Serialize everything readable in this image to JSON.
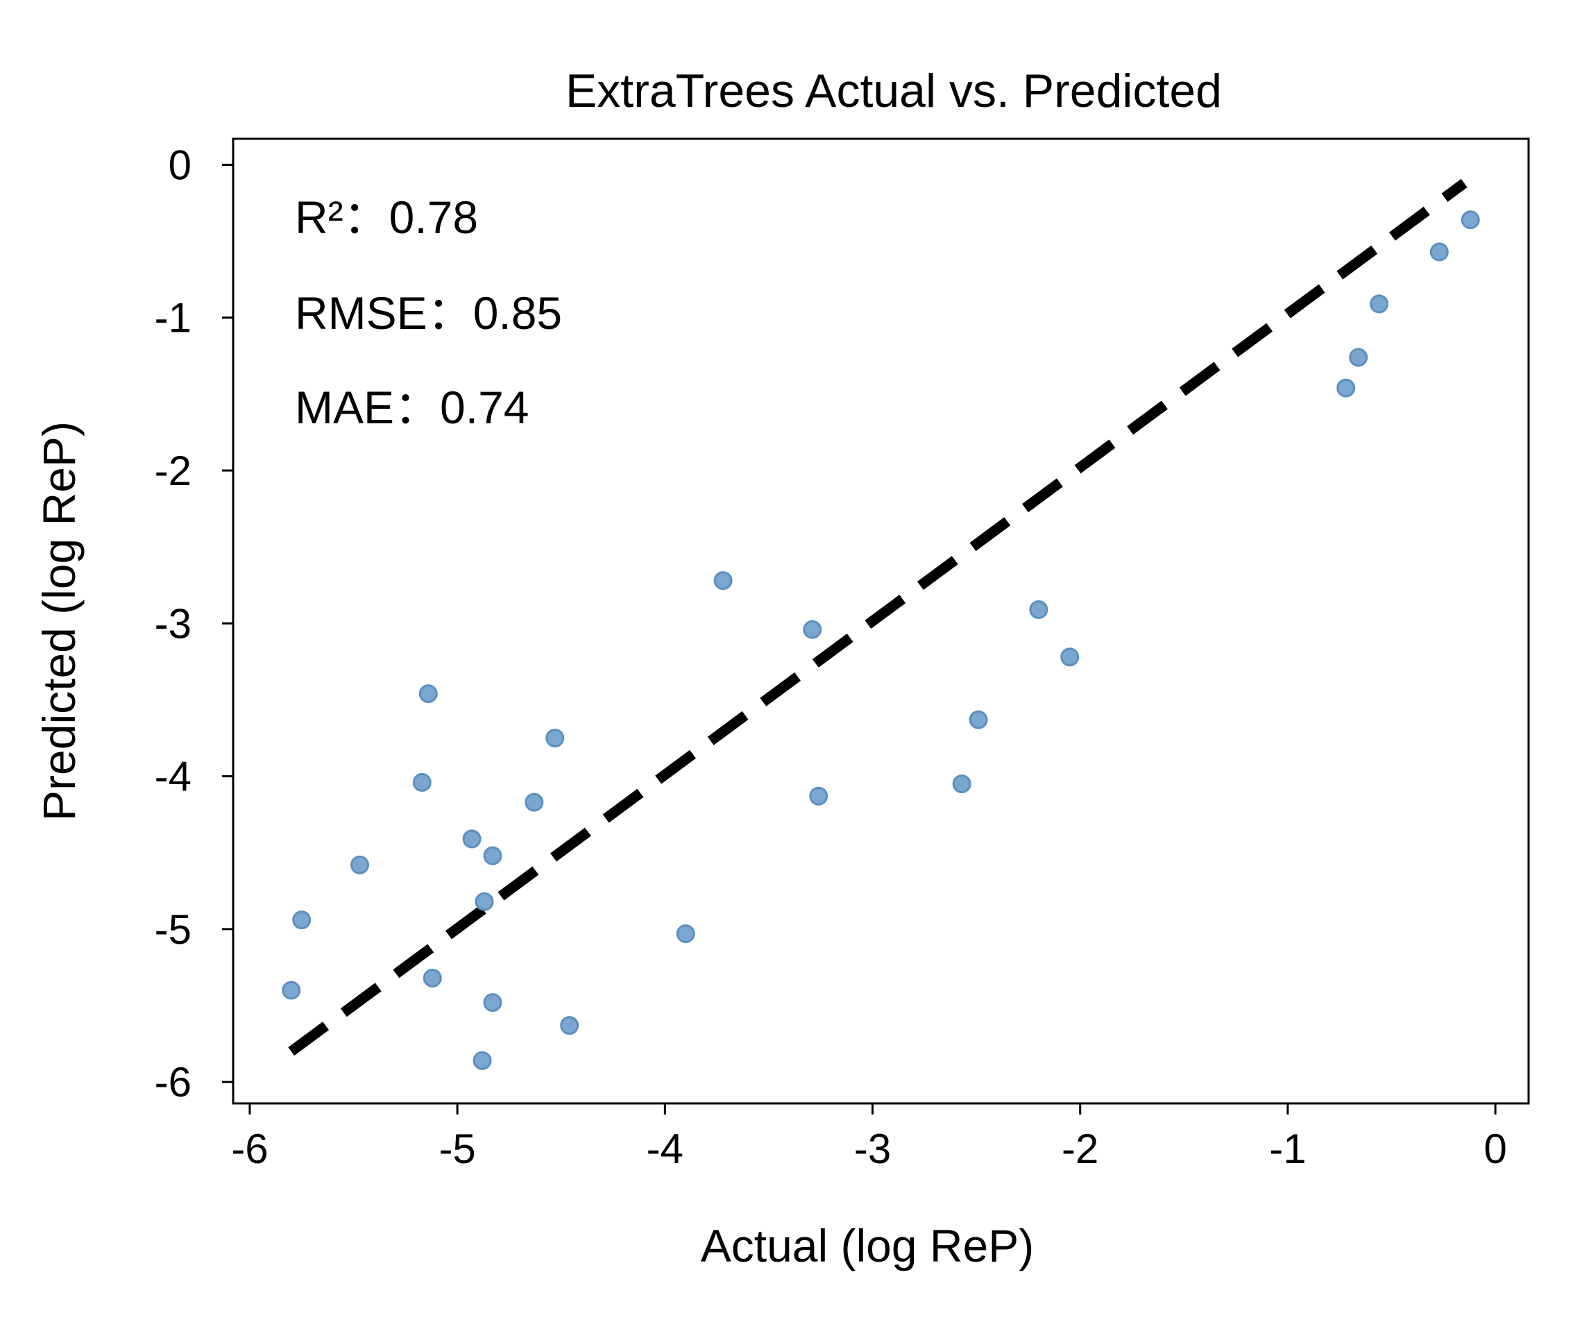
{
  "chart_data": {
    "type": "scatter",
    "title": "ExtraTrees Actual vs. Predicted",
    "xlabel": "Actual (log ReP)",
    "ylabel": "Predicted (log ReP)",
    "xlim": [
      -6.08,
      0.16
    ],
    "ylim": [
      -6.14,
      0.17
    ],
    "xticks": [
      -6,
      -5,
      -4,
      -3,
      -2,
      -1,
      0
    ],
    "yticks": [
      0,
      -1,
      -2,
      -3,
      -4,
      -5,
      -6
    ],
    "xtick_labels": [
      "-6",
      "-5",
      "-4",
      "-3",
      "-2",
      "-1",
      "0"
    ],
    "ytick_labels": [
      "0",
      "-1",
      "-2",
      "-3",
      "-4",
      "-5",
      "-6"
    ],
    "grid": false,
    "legend": false,
    "colors": {
      "points": "#7aa6cf",
      "point_edge": "#5d8fbf",
      "line": "#000000"
    },
    "reference_line": {
      "style": "dashed",
      "x": [
        -5.8,
        -0.15
      ],
      "y": [
        -5.8,
        -0.12
      ]
    },
    "series": [
      {
        "x": [
          -5.8,
          -5.75,
          -5.47,
          -5.17,
          -5.14,
          -5.12,
          -4.93,
          -4.83,
          -4.83,
          -4.87,
          -4.88,
          -4.63,
          -4.53,
          -4.46,
          -3.9,
          -3.72,
          -3.29,
          -3.26,
          -2.57,
          -2.49,
          -2.2,
          -2.05,
          -0.72,
          -0.66,
          -0.56,
          -0.27,
          -0.12
        ],
        "y": [
          -5.4,
          -4.94,
          -4.58,
          -4.04,
          -3.46,
          -5.32,
          -4.41,
          -4.52,
          -5.48,
          -4.82,
          -5.86,
          -4.17,
          -3.75,
          -5.63,
          -5.03,
          -2.72,
          -3.04,
          -4.13,
          -4.05,
          -3.63,
          -2.91,
          -3.22,
          -1.46,
          -1.26,
          -0.91,
          -0.57,
          -0.36
        ]
      }
    ],
    "annotations": [
      {
        "label": "R²：",
        "value": "0.78"
      },
      {
        "label": "RMSE：",
        "value": "0.85"
      },
      {
        "label": "MAE：",
        "value": "0.74"
      }
    ]
  }
}
